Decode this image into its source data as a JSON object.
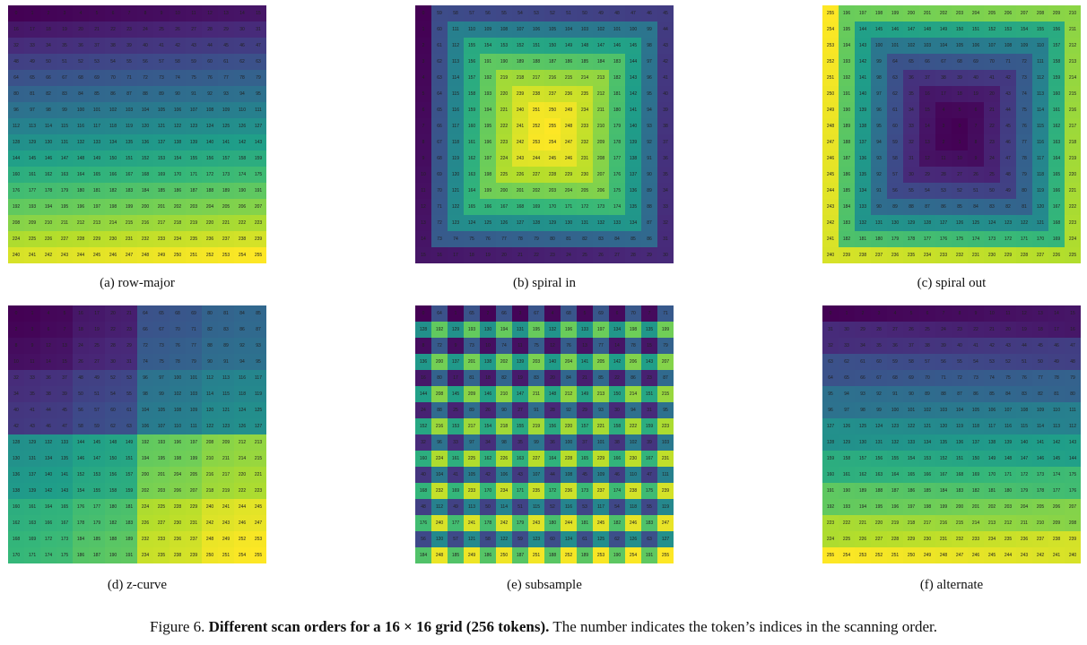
{
  "panels": [
    {
      "id": "row-major",
      "caption": "(a) row-major"
    },
    {
      "id": "spiral-in",
      "caption": "(b) spiral in"
    },
    {
      "id": "spiral-out",
      "caption": "(c) spiral out"
    },
    {
      "id": "z-curve",
      "caption": "(d) z-curve"
    },
    {
      "id": "subsample",
      "caption": "(e) subsample"
    },
    {
      "id": "alternate",
      "caption": "(f) alternate"
    }
  ],
  "figure": {
    "label": "Figure 6.",
    "bold_title": "Different scan orders for a 16 × 16 grid (256 tokens).",
    "rest": "The number indicates the token’s indices in the scanning order."
  },
  "grid": {
    "rows": 16,
    "cols": 16,
    "tokens": 256
  },
  "colormap": "viridis"
}
